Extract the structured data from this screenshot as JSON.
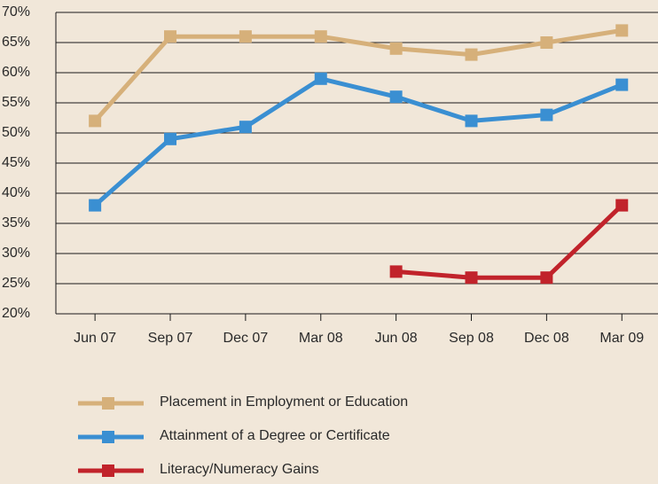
{
  "chart_data": {
    "type": "line",
    "categories": [
      "Jun 07",
      "Sep 07",
      "Dec 07",
      "Mar 08",
      "Jun 08",
      "Sep 08",
      "Dec 08",
      "Mar 09"
    ],
    "series": [
      {
        "name": "Placement in Employment or Education",
        "color": "#d6b07a",
        "values": [
          52,
          66,
          66,
          66,
          64,
          63,
          65,
          67
        ]
      },
      {
        "name": "Attainment of a Degree or Certificate",
        "color": "#3a8fd2",
        "values": [
          38,
          49,
          51,
          59,
          56,
          52,
          53,
          58
        ]
      },
      {
        "name": "Literacy/Numeracy Gains",
        "color": "#c1232b",
        "values": [
          null,
          null,
          null,
          null,
          27,
          26,
          26,
          38
        ]
      }
    ],
    "ylim": [
      20,
      70
    ],
    "yticks": [
      {
        "value": 20,
        "label": "20%"
      },
      {
        "value": 25,
        "label": "25%"
      },
      {
        "value": 30,
        "label": "30%"
      },
      {
        "value": 35,
        "label": "35%"
      },
      {
        "value": 40,
        "label": "40%"
      },
      {
        "value": 45,
        "label": "45%"
      },
      {
        "value": 50,
        "label": "50%"
      },
      {
        "value": 55,
        "label": "55%"
      },
      {
        "value": 60,
        "label": "60%"
      },
      {
        "value": 65,
        "label": "65%"
      },
      {
        "value": 70,
        "label": "70%"
      }
    ],
    "grid": true,
    "legend": "bottom"
  }
}
